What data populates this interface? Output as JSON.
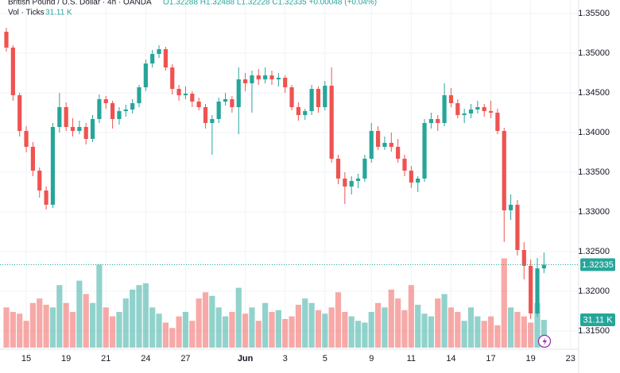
{
  "chart_data": {
    "type": "candlestick",
    "header_symbol": "British Pound / U.S. Dollar · 4h · OANDA",
    "header_ohlc": "O1.32288 H1.32488 L1.32228 C1.32335 +0.00048 (+0.04%)",
    "volume_legend": "Vol · Ticks",
    "last_volume_label": "31.11 K",
    "up_color": "#26a69a",
    "down_color": "#ef5350",
    "grid": true,
    "ylim": [
      1.3129,
      1.3567
    ],
    "yticks": [
      {
        "value": 1.315,
        "label": "1.31500"
      },
      {
        "value": 1.32,
        "label": "1.32000"
      },
      {
        "value": 1.325,
        "label": "1.32500"
      },
      {
        "value": 1.33,
        "label": "1.33000"
      },
      {
        "value": 1.335,
        "label": "1.33500"
      },
      {
        "value": 1.34,
        "label": "1.34000"
      },
      {
        "value": 1.345,
        "label": "1.34500"
      },
      {
        "value": 1.35,
        "label": "1.35000"
      },
      {
        "value": 1.355,
        "label": "1.35500"
      }
    ],
    "volume_ylim": [
      0,
      100
    ],
    "categories": [
      null,
      null,
      null,
      "15",
      null,
      null,
      null,
      null,
      null,
      "19",
      null,
      null,
      null,
      null,
      null,
      "21",
      null,
      null,
      null,
      null,
      null,
      "24",
      null,
      null,
      null,
      null,
      null,
      "27",
      null,
      null,
      null,
      null,
      null,
      null,
      null,
      null,
      "Jun",
      null,
      null,
      null,
      null,
      null,
      "3",
      null,
      null,
      null,
      null,
      null,
      "5",
      null,
      null,
      null,
      null,
      null,
      null,
      "9",
      null,
      null,
      null,
      null,
      null,
      "11",
      null,
      null,
      null,
      null,
      null,
      "14",
      null,
      null,
      null,
      null,
      null,
      "17",
      null,
      null,
      null,
      null,
      null,
      "19",
      null,
      null,
      null,
      null,
      null,
      "23"
    ],
    "candles": [
      [
        1.3527,
        1.3532,
        1.3502,
        1.3507
      ],
      [
        1.3507,
        1.351,
        1.344,
        1.3447
      ],
      [
        1.3447,
        1.345,
        1.3395,
        1.3402
      ],
      [
        1.3402,
        1.3408,
        1.3375,
        1.3382
      ],
      [
        1.3382,
        1.3388,
        1.3345,
        1.3352
      ],
      [
        1.3352,
        1.3356,
        1.3318,
        1.3327
      ],
      [
        1.3327,
        1.3332,
        1.3303,
        1.3309
      ],
      [
        1.3309,
        1.3412,
        1.3305,
        1.3407
      ],
      [
        1.3407,
        1.345,
        1.34,
        1.3432
      ],
      [
        1.3432,
        1.3438,
        1.3402,
        1.3407
      ],
      [
        1.3407,
        1.3418,
        1.3395,
        1.3402
      ],
      [
        1.3402,
        1.3415,
        1.3398,
        1.3407
      ],
      [
        1.3407,
        1.3412,
        1.3385,
        1.3392
      ],
      [
        1.3392,
        1.3422,
        1.3388,
        1.3417
      ],
      [
        1.3417,
        1.3448,
        1.3412,
        1.3442
      ],
      [
        1.3442,
        1.3446,
        1.343,
        1.3437
      ],
      [
        1.3437,
        1.344,
        1.3405,
        1.3417
      ],
      [
        1.3417,
        1.3432,
        1.341,
        1.3427
      ],
      [
        1.3427,
        1.3435,
        1.342,
        1.3429
      ],
      [
        1.3429,
        1.3442,
        1.3424,
        1.3437
      ],
      [
        1.3437,
        1.346,
        1.3432,
        1.3457
      ],
      [
        1.3457,
        1.3492,
        1.3452,
        1.3487
      ],
      [
        1.3487,
        1.3504,
        1.3482,
        1.3499
      ],
      [
        1.3499,
        1.351,
        1.3494,
        1.3505
      ],
      [
        1.3505,
        1.3508,
        1.3478,
        1.3482
      ],
      [
        1.3482,
        1.3486,
        1.3448,
        1.3455
      ],
      [
        1.3455,
        1.346,
        1.344,
        1.3447
      ],
      [
        1.3447,
        1.3458,
        1.3442,
        1.3449
      ],
      [
        1.3449,
        1.3452,
        1.3432,
        1.3439
      ],
      [
        1.3439,
        1.3444,
        1.3428,
        1.3432
      ],
      [
        1.3432,
        1.3436,
        1.3405,
        1.3412
      ],
      [
        1.3412,
        1.3422,
        1.3372,
        1.3417
      ],
      [
        1.3417,
        1.3444,
        1.3412,
        1.3439
      ],
      [
        1.3439,
        1.345,
        1.3434,
        1.3442
      ],
      [
        1.3442,
        1.3446,
        1.3425,
        1.3432
      ],
      [
        1.3432,
        1.3482,
        1.3398,
        1.3467
      ],
      [
        1.3467,
        1.3475,
        1.3452,
        1.3462
      ],
      [
        1.3462,
        1.3478,
        1.3425,
        1.3472
      ],
      [
        1.3472,
        1.348,
        1.346,
        1.3467
      ],
      [
        1.3467,
        1.3482,
        1.3462,
        1.3472
      ],
      [
        1.3472,
        1.3478,
        1.346,
        1.3467
      ],
      [
        1.3467,
        1.3475,
        1.3458,
        1.3469
      ],
      [
        1.3469,
        1.3472,
        1.345,
        1.3457
      ],
      [
        1.3457,
        1.346,
        1.3428,
        1.3432
      ],
      [
        1.3432,
        1.3438,
        1.3415,
        1.3422
      ],
      [
        1.3422,
        1.343,
        1.3416,
        1.3427
      ],
      [
        1.3427,
        1.346,
        1.3422,
        1.3455
      ],
      [
        1.3455,
        1.3458,
        1.3425,
        1.3432
      ],
      [
        1.3432,
        1.3465,
        1.3428,
        1.3459
      ],
      [
        1.3459,
        1.3482,
        1.3362,
        1.3367
      ],
      [
        1.3367,
        1.3372,
        1.3335,
        1.3342
      ],
      [
        1.3342,
        1.335,
        1.331,
        1.3332
      ],
      [
        1.3332,
        1.3345,
        1.3322,
        1.3339
      ],
      [
        1.3339,
        1.3348,
        1.333,
        1.3342
      ],
      [
        1.3342,
        1.3372,
        1.3338,
        1.3367
      ],
      [
        1.3367,
        1.3412,
        1.3362,
        1.3402
      ],
      [
        1.3402,
        1.3408,
        1.3378,
        1.3382
      ],
      [
        1.3382,
        1.3395,
        1.3378,
        1.3387
      ],
      [
        1.3387,
        1.34,
        1.3376,
        1.3382
      ],
      [
        1.3382,
        1.3392,
        1.3362,
        1.3367
      ],
      [
        1.3367,
        1.3372,
        1.3345,
        1.3352
      ],
      [
        1.3352,
        1.3358,
        1.333,
        1.3337
      ],
      [
        1.3337,
        1.3345,
        1.3325,
        1.3342
      ],
      [
        1.3342,
        1.3417,
        1.3338,
        1.3412
      ],
      [
        1.3412,
        1.3425,
        1.3405,
        1.3417
      ],
      [
        1.3417,
        1.3422,
        1.3402,
        1.3412
      ],
      [
        1.3412,
        1.3462,
        1.3408,
        1.3447
      ],
      [
        1.3447,
        1.3456,
        1.3432,
        1.3437
      ],
      [
        1.3437,
        1.3442,
        1.3418,
        1.3422
      ],
      [
        1.3422,
        1.343,
        1.3412,
        1.3424
      ],
      [
        1.3424,
        1.3436,
        1.3418,
        1.3429
      ],
      [
        1.3429,
        1.344,
        1.3424,
        1.3432
      ],
      [
        1.3432,
        1.3436,
        1.342,
        1.3427
      ],
      [
        1.3427,
        1.344,
        1.3418,
        1.3425
      ],
      [
        1.3425,
        1.343,
        1.3398,
        1.3402
      ],
      [
        1.3402,
        1.3406,
        1.3262,
        1.3302
      ],
      [
        1.3302,
        1.3322,
        1.329,
        1.3309
      ],
      [
        1.3309,
        1.3315,
        1.3245,
        1.3252
      ],
      [
        1.3252,
        1.3262,
        1.3215,
        1.3232
      ],
      [
        1.3232,
        1.324,
        1.3165,
        1.3172
      ],
      [
        1.3172,
        1.3242,
        1.3168,
        1.32288
      ],
      [
        1.32288,
        1.32488,
        1.32228,
        1.32335
      ],
      null,
      null,
      null,
      null
    ],
    "volumes": [
      45,
      40,
      38,
      30,
      50,
      55,
      48,
      45,
      70,
      50,
      40,
      75,
      60,
      50,
      93,
      45,
      35,
      40,
      55,
      65,
      70,
      72,
      45,
      38,
      28,
      22,
      35,
      40,
      30,
      55,
      62,
      58,
      45,
      35,
      40,
      67,
      38,
      45,
      30,
      50,
      40,
      42,
      32,
      35,
      48,
      55,
      50,
      42,
      38,
      45,
      62,
      40,
      35,
      30,
      28,
      40,
      50,
      45,
      65,
      55,
      42,
      70,
      48,
      38,
      35,
      55,
      60,
      45,
      40,
      30,
      45,
      35,
      30,
      35,
      25,
      100,
      45,
      40,
      35,
      28,
      50,
      31.11,
      null,
      null,
      null,
      null
    ]
  }
}
